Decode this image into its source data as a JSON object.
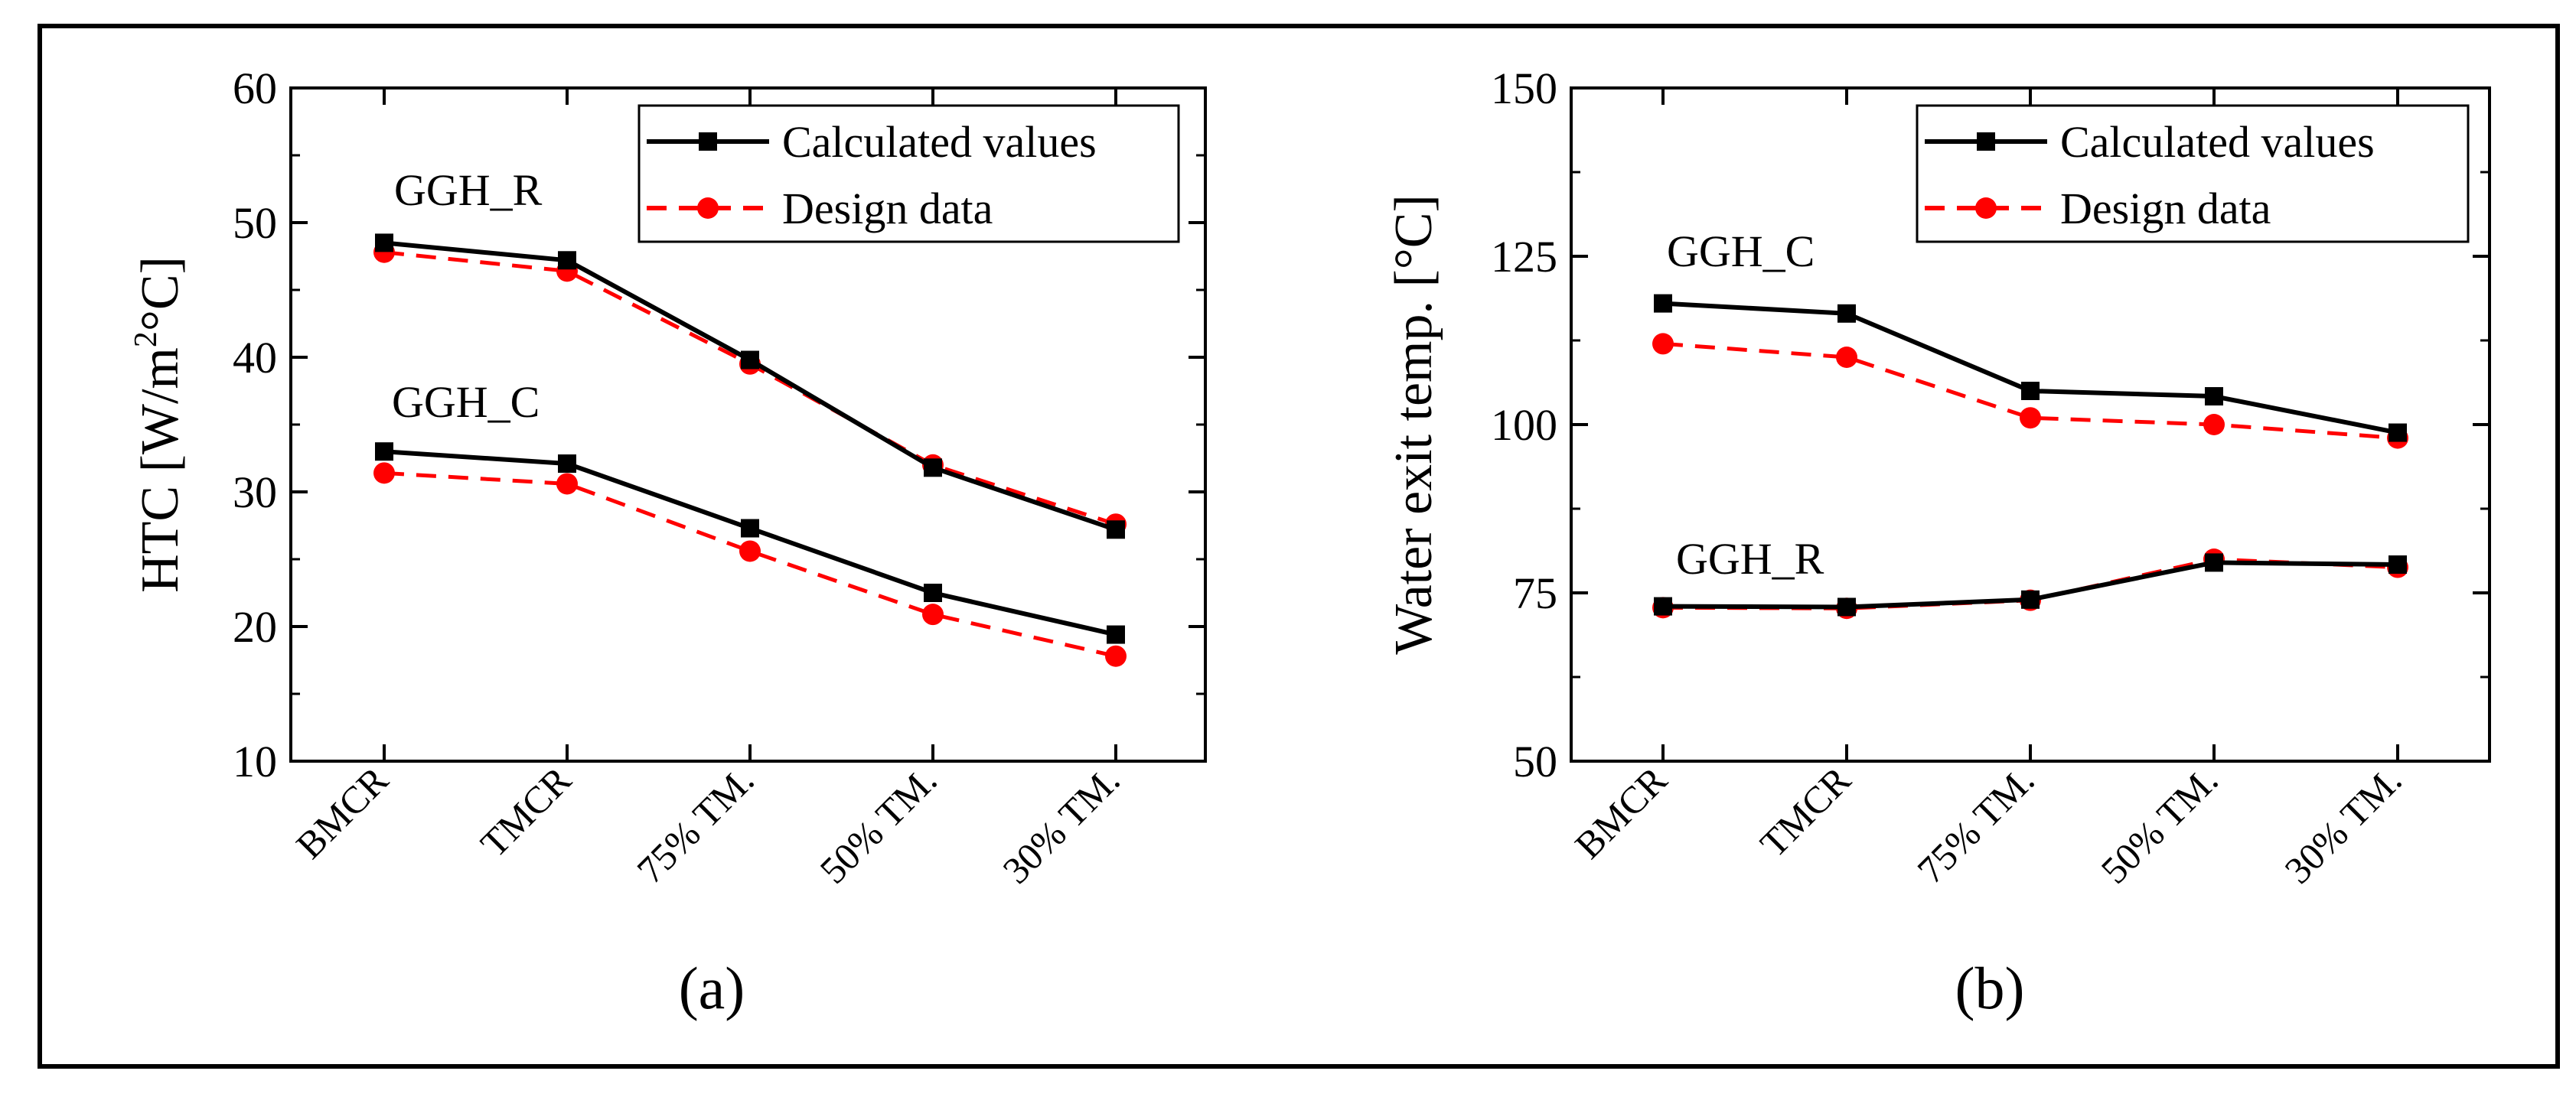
{
  "colors": {
    "calculated": "#000000",
    "design": "#ff0000",
    "frame": "#000000",
    "background": "#ffffff"
  },
  "chart_data": [
    {
      "type": "line",
      "panel_label": "(a)",
      "title": "",
      "xlabel": "",
      "ylabel": "HTC [W/m",
      "ylabel_sup": "2",
      "ylabel_end": "°C]",
      "ylim": [
        10,
        60
      ],
      "yticks": [
        10,
        20,
        30,
        40,
        50,
        60
      ],
      "categories": [
        "BMCR",
        "TMCR",
        "75% TM.",
        "50% TM.",
        "30% TM."
      ],
      "legend": {
        "position": "top-right",
        "entries": [
          "Calculated values",
          "Design data"
        ]
      },
      "groups": [
        {
          "name": "GGH_R",
          "series": [
            {
              "name": "Calculated values",
              "style": "solid-square",
              "values": [
                48.5,
                47.2,
                39.8,
                31.8,
                27.2
              ]
            },
            {
              "name": "Design data",
              "style": "dashed-circle",
              "values": [
                47.8,
                46.4,
                39.5,
                32.0,
                27.6
              ]
            }
          ]
        },
        {
          "name": "GGH_C",
          "series": [
            {
              "name": "Calculated values",
              "style": "solid-square",
              "values": [
                33.0,
                32.1,
                27.3,
                22.5,
                19.4
              ]
            },
            {
              "name": "Design data",
              "style": "dashed-circle",
              "values": [
                31.4,
                30.6,
                25.6,
                20.9,
                17.8
              ]
            }
          ]
        }
      ]
    },
    {
      "type": "line",
      "panel_label": "(b)",
      "title": "",
      "xlabel": "",
      "ylabel": "Water exit temp. [°C]",
      "ylim": [
        50,
        150
      ],
      "yticks": [
        50,
        75,
        100,
        125,
        150
      ],
      "categories": [
        "BMCR",
        "TMCR",
        "75% TM.",
        "50% TM.",
        "30% TM."
      ],
      "legend": {
        "position": "top-right",
        "entries": [
          "Calculated values",
          "Design data"
        ]
      },
      "groups": [
        {
          "name": "GGH_C",
          "series": [
            {
              "name": "Calculated values",
              "style": "solid-square",
              "values": [
                118.0,
                116.5,
                105.0,
                104.2,
                98.8
              ]
            },
            {
              "name": "Design data",
              "style": "dashed-circle",
              "values": [
                112.0,
                110.0,
                101.0,
                100.0,
                98.0
              ]
            }
          ]
        },
        {
          "name": "GGH_R",
          "series": [
            {
              "name": "Calculated values",
              "style": "solid-square",
              "values": [
                73.0,
                72.9,
                74.0,
                79.5,
                79.2
              ]
            },
            {
              "name": "Design data",
              "style": "dashed-circle",
              "values": [
                72.8,
                72.7,
                73.9,
                80.0,
                78.8
              ]
            }
          ]
        }
      ]
    }
  ]
}
